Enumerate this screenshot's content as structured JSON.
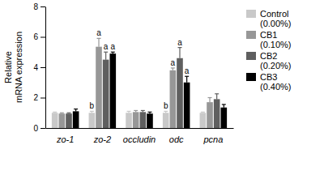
{
  "chart_data": {
    "type": "bar",
    "y_label": [
      "Relative",
      "mRNA expression"
    ],
    "categories": [
      "zo-1",
      "zo-2",
      "occludin",
      "odc",
      "pcna"
    ],
    "series": [
      {
        "name": "Control (0.00%)",
        "color": "#c9c9c9",
        "values": [
          1.0,
          1.0,
          1.0,
          1.0,
          1.0
        ],
        "errors": [
          0.05,
          0.1,
          0.1,
          0.1,
          0.05
        ],
        "letters": [
          null,
          "b",
          null,
          "b",
          null
        ]
      },
      {
        "name": "CB1 (0.10%)",
        "color": "#979797",
        "values": [
          0.95,
          5.35,
          1.05,
          3.8,
          1.7
        ],
        "errors": [
          0.05,
          0.55,
          0.1,
          0.15,
          0.3
        ],
        "letters": [
          null,
          "a",
          null,
          "a",
          null
        ]
      },
      {
        "name": "CB2 (0.20%)",
        "color": "#5f5f5f",
        "values": [
          0.95,
          4.5,
          1.05,
          4.6,
          1.9
        ],
        "errors": [
          0.05,
          0.5,
          0.1,
          0.7,
          0.35
        ],
        "letters": [
          null,
          "a",
          null,
          "a",
          null
        ]
      },
      {
        "name": "CB3 (0.40%)",
        "color": "#000000",
        "values": [
          1.1,
          4.9,
          0.95,
          3.0,
          1.35
        ],
        "errors": [
          0.15,
          0.1,
          0.1,
          0.4,
          0.2
        ],
        "letters": [
          null,
          "a",
          null,
          "a",
          null
        ]
      }
    ],
    "ylim": [
      0,
      8
    ],
    "yticks": [
      0,
      2,
      4,
      6,
      8
    ],
    "grid": false,
    "legend": "right"
  }
}
